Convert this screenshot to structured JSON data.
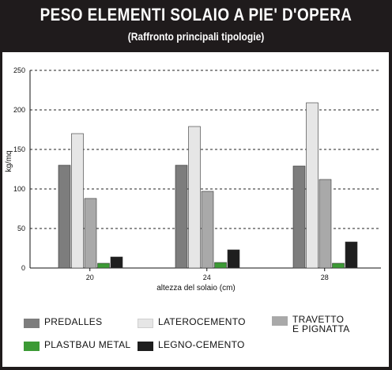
{
  "header": {
    "title": "PESO ELEMENTI SOLAIO A PIE' D'OPERA",
    "subtitle": "(Raffronto principali tipologie)"
  },
  "chart_data": {
    "type": "bar",
    "title": "PESO ELEMENTI SOLAIO A PIE' D'OPERA",
    "subtitle": "(Raffronto principali tipologie)",
    "xlabel": "altezza del solaio (cm)",
    "ylabel": "kg/mq",
    "ylim": [
      0,
      250
    ],
    "yticks": [
      0,
      50,
      100,
      150,
      200,
      250
    ],
    "grid": "horizontal-dashed",
    "categories": [
      "20",
      "24",
      "28"
    ],
    "series": [
      {
        "name": "PREDALLES",
        "color": "#7d7d7d",
        "values": [
          130,
          130,
          129
        ]
      },
      {
        "name": "LATEROCEMENTO",
        "color": "#e6e6e6",
        "values": [
          170,
          179,
          209
        ]
      },
      {
        "name": "TRAVETTO\nE PIGNATTA",
        "color": "#a9a9a9",
        "values": [
          88,
          97,
          112
        ]
      },
      {
        "name": "PLASTBAU METAL",
        "color": "#3c9a35",
        "values": [
          6,
          7,
          6
        ]
      },
      {
        "name": "LEGNO-CEMENTO",
        "color": "#1e1e1e",
        "values": [
          14,
          23,
          33
        ]
      }
    ],
    "legend_position": "bottom"
  }
}
